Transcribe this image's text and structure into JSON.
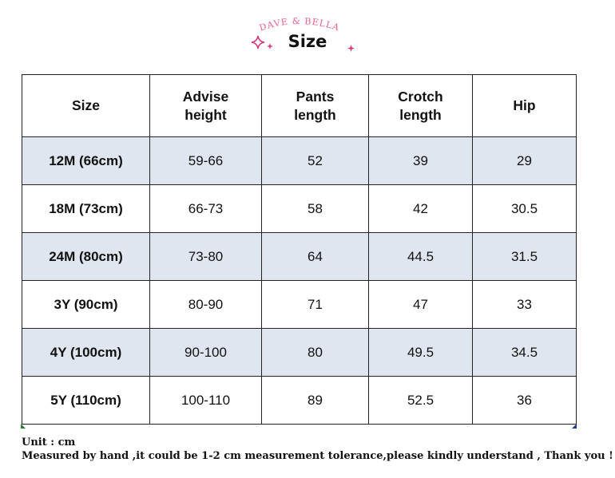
{
  "header": {
    "brand": "DAVE & BELLA",
    "title": "Size",
    "brand_color": "#e8608a",
    "sparkle_color": "#d23d7a",
    "sparkle_icons": [
      "sparkle-icon",
      "sparkle-icon",
      "sparkle-icon"
    ]
  },
  "table": {
    "columns": [
      "Size",
      "Advise height",
      "Pants length",
      "Crotch length",
      "Hip"
    ],
    "header_lines": [
      [
        "Size"
      ],
      [
        "Advise",
        "height"
      ],
      [
        "Pants",
        "length"
      ],
      [
        "Crotch",
        "length"
      ],
      [
        "Hip"
      ]
    ],
    "rows": [
      [
        "12M (66cm)",
        "59-66",
        "52",
        "39",
        "29"
      ],
      [
        "18M (73cm)",
        "66-73",
        "58",
        "42",
        "30.5"
      ],
      [
        "24M (80cm)",
        "73-80",
        "64",
        "44.5",
        "31.5"
      ],
      [
        "3Y (90cm)",
        "80-90",
        "71",
        "47",
        "33"
      ],
      [
        "4Y (100cm)",
        "90-100",
        "80",
        "49.5",
        "34.5"
      ],
      [
        "5Y (110cm)",
        "100-110",
        "89",
        "52.5",
        "36"
      ]
    ],
    "shaded_row_color": "#dfe6f0"
  },
  "notes": {
    "unit": "Unit : cm",
    "tolerance": "Measured by hand ,it could be 1-2 cm measurement tolerance,please kindly understand , Thank you !"
  }
}
